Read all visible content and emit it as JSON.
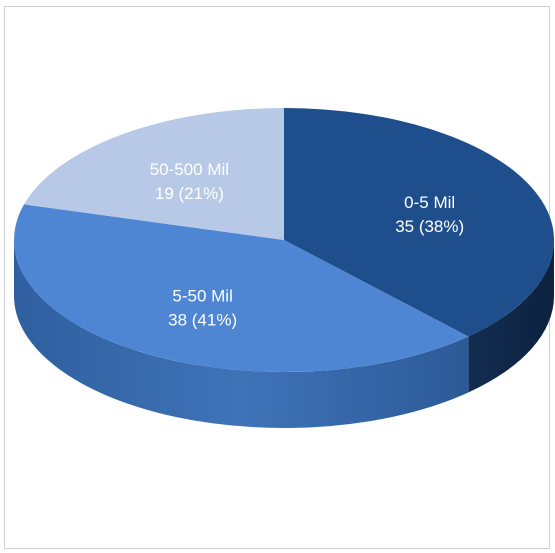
{
  "chart_data": {
    "type": "pie",
    "title": "",
    "style": "3d",
    "slices": [
      {
        "label": "0-5 Mil",
        "value": 35,
        "percent": 38,
        "text": "35  (38%)",
        "color": "#1f4e8c"
      },
      {
        "label": "5-50 Mil",
        "value": 38,
        "percent": 41,
        "text": "38  (41%)",
        "color": "#4e86d4"
      },
      {
        "label": "50-500 Mil",
        "value": 19,
        "percent": 21,
        "text": "19  (21%)",
        "color": "#b7c9e6"
      }
    ]
  }
}
